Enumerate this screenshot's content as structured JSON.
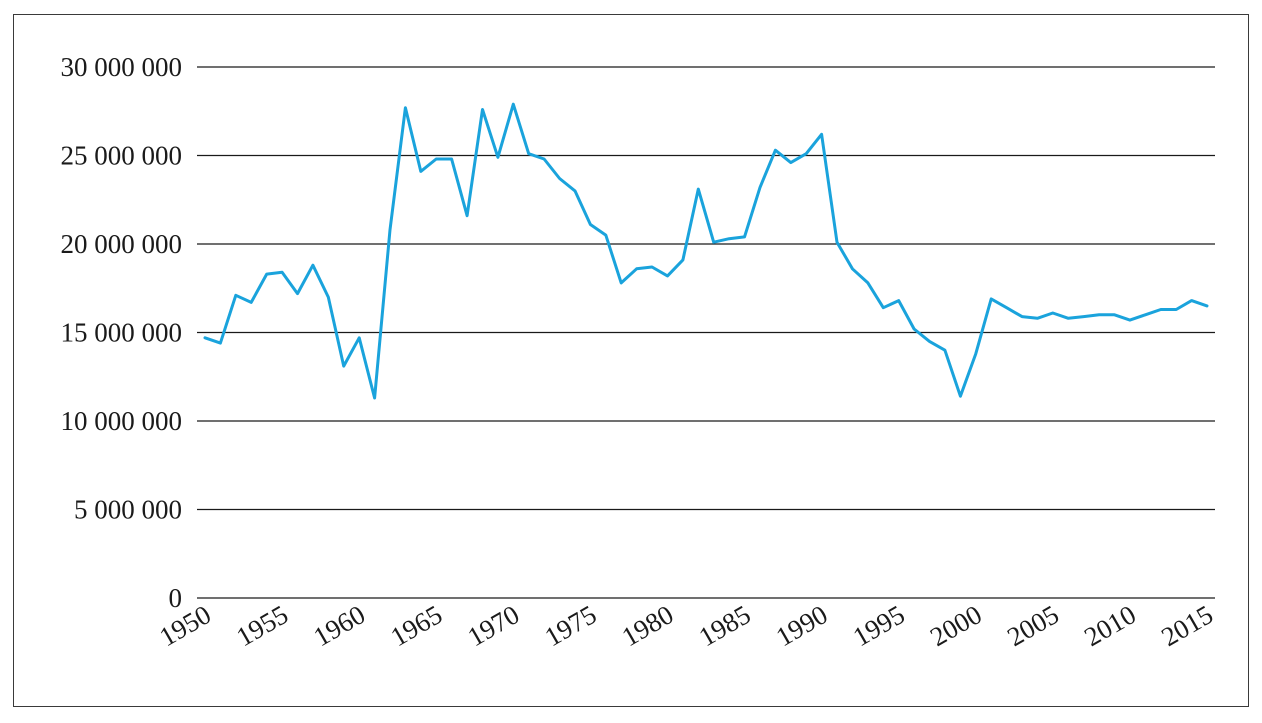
{
  "chart_data": {
    "type": "line",
    "title": "",
    "xlabel": "",
    "ylabel": "",
    "ylim": [
      0,
      30000000
    ],
    "xlim": [
      1950,
      2015
    ],
    "grid": "horizontal",
    "line_color": "#1aa3dc",
    "y_ticks": [
      0,
      5000000,
      10000000,
      15000000,
      20000000,
      25000000,
      30000000
    ],
    "y_tick_labels": [
      "0",
      "5 000 000",
      "10 000 000",
      "15 000 000",
      "20 000 000",
      "25 000 000",
      "30 000 000"
    ],
    "x_ticks": [
      1950,
      1955,
      1960,
      1965,
      1970,
      1975,
      1980,
      1985,
      1990,
      1995,
      2000,
      2005,
      2010,
      2015
    ],
    "x_tick_labels": [
      "1950",
      "1955",
      "1960",
      "1965",
      "1970",
      "1975",
      "1980",
      "1985",
      "1990",
      "1995",
      "2000",
      "2005",
      "2010",
      "2015"
    ],
    "x": [
      1950,
      1951,
      1952,
      1953,
      1954,
      1955,
      1956,
      1957,
      1958,
      1959,
      1960,
      1961,
      1962,
      1963,
      1964,
      1965,
      1966,
      1967,
      1968,
      1969,
      1970,
      1971,
      1972,
      1973,
      1974,
      1975,
      1976,
      1977,
      1978,
      1979,
      1980,
      1981,
      1982,
      1983,
      1984,
      1985,
      1986,
      1987,
      1988,
      1989,
      1990,
      1991,
      1992,
      1993,
      1994,
      1995,
      1996,
      1997,
      1998,
      1999,
      2000,
      2001,
      2002,
      2003,
      2004,
      2005,
      2006,
      2007,
      2008,
      2009,
      2010,
      2011,
      2012,
      2013,
      2014,
      2015
    ],
    "series": [
      {
        "values": [
          14700000,
          14400000,
          17100000,
          16700000,
          18300000,
          18400000,
          17200000,
          18800000,
          17000000,
          13100000,
          14700000,
          11300000,
          20800000,
          27700000,
          24100000,
          24800000,
          24800000,
          21600000,
          27600000,
          24900000,
          27900000,
          25100000,
          24800000,
          23700000,
          23000000,
          21100000,
          20500000,
          17800000,
          18600000,
          18700000,
          18200000,
          19100000,
          23100000,
          20100000,
          20300000,
          20400000,
          23200000,
          25300000,
          24600000,
          25100000,
          26200000,
          20100000,
          18600000,
          17800000,
          16400000,
          16800000,
          15200000,
          14500000,
          14000000,
          11400000,
          13800000,
          16900000,
          16400000,
          15900000,
          15800000,
          16100000,
          15800000,
          15900000,
          16000000,
          16000000,
          15700000,
          16000000,
          16300000,
          16300000,
          16800000,
          16500000
        ]
      }
    ]
  }
}
